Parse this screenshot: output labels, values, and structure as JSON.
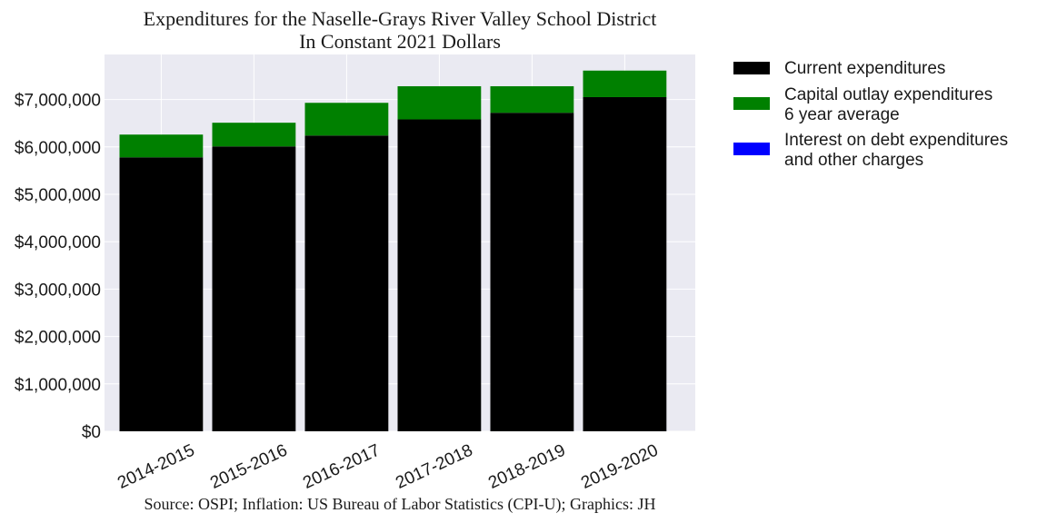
{
  "chart_data": {
    "type": "bar",
    "stacked": true,
    "title": "Expenditures for the Naselle-Grays River Valley School District",
    "subtitle": "In Constant 2021 Dollars",
    "xlabel": "",
    "ylabel": "",
    "categories": [
      "2014-2015",
      "2015-2016",
      "2016-2017",
      "2017-2018",
      "2018-2019",
      "2019-2020"
    ],
    "series": [
      {
        "name": "Current expenditures",
        "color": "#000000",
        "values": [
          5780000,
          6010000,
          6240000,
          6580000,
          6720000,
          7050000
        ]
      },
      {
        "name": "Capital outlay expenditures\n6 year average",
        "color": "#008000",
        "values": [
          480000,
          500000,
          690000,
          700000,
          560000,
          560000
        ]
      },
      {
        "name": "Interest on debt expenditures\nand other charges",
        "color": "#0000ff",
        "values": [
          0,
          0,
          0,
          0,
          0,
          0
        ]
      }
    ],
    "ylim": [
      0,
      7950000
    ],
    "yticks": [
      0,
      1000000,
      2000000,
      3000000,
      4000000,
      5000000,
      6000000,
      7000000
    ],
    "ytick_labels": [
      "$0",
      "$1,000,000",
      "$2,000,000",
      "$3,000,000",
      "$4,000,000",
      "$5,000,000",
      "$6,000,000",
      "$7,000,000"
    ],
    "grid": true,
    "legend_position": "outside-right",
    "background_color": "#eaeaf2",
    "grid_color": "#ffffff",
    "source": "Source: OSPI; Inflation: US Bureau of Labor Statistics (CPI-U); Graphics: JH"
  }
}
